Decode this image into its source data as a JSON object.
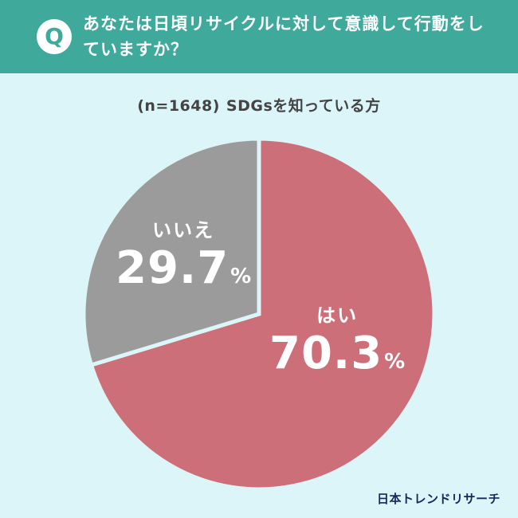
{
  "header": {
    "badge": "Q",
    "question": "あなたは日頃リサイクルに対して意識して行動をしていますか？"
  },
  "subtitle": {
    "n": "(n=1648)",
    "text": "SDGsを知っている方"
  },
  "chart_data": {
    "type": "pie",
    "categories": [
      "はい",
      "いいえ"
    ],
    "values": [
      70.3,
      29.7
    ],
    "unit": "%",
    "colors": [
      "#cd6f78",
      "#9b9b9b"
    ],
    "start": "top",
    "direction": "clockwise"
  },
  "logo": "日本トレンドリサーチ"
}
